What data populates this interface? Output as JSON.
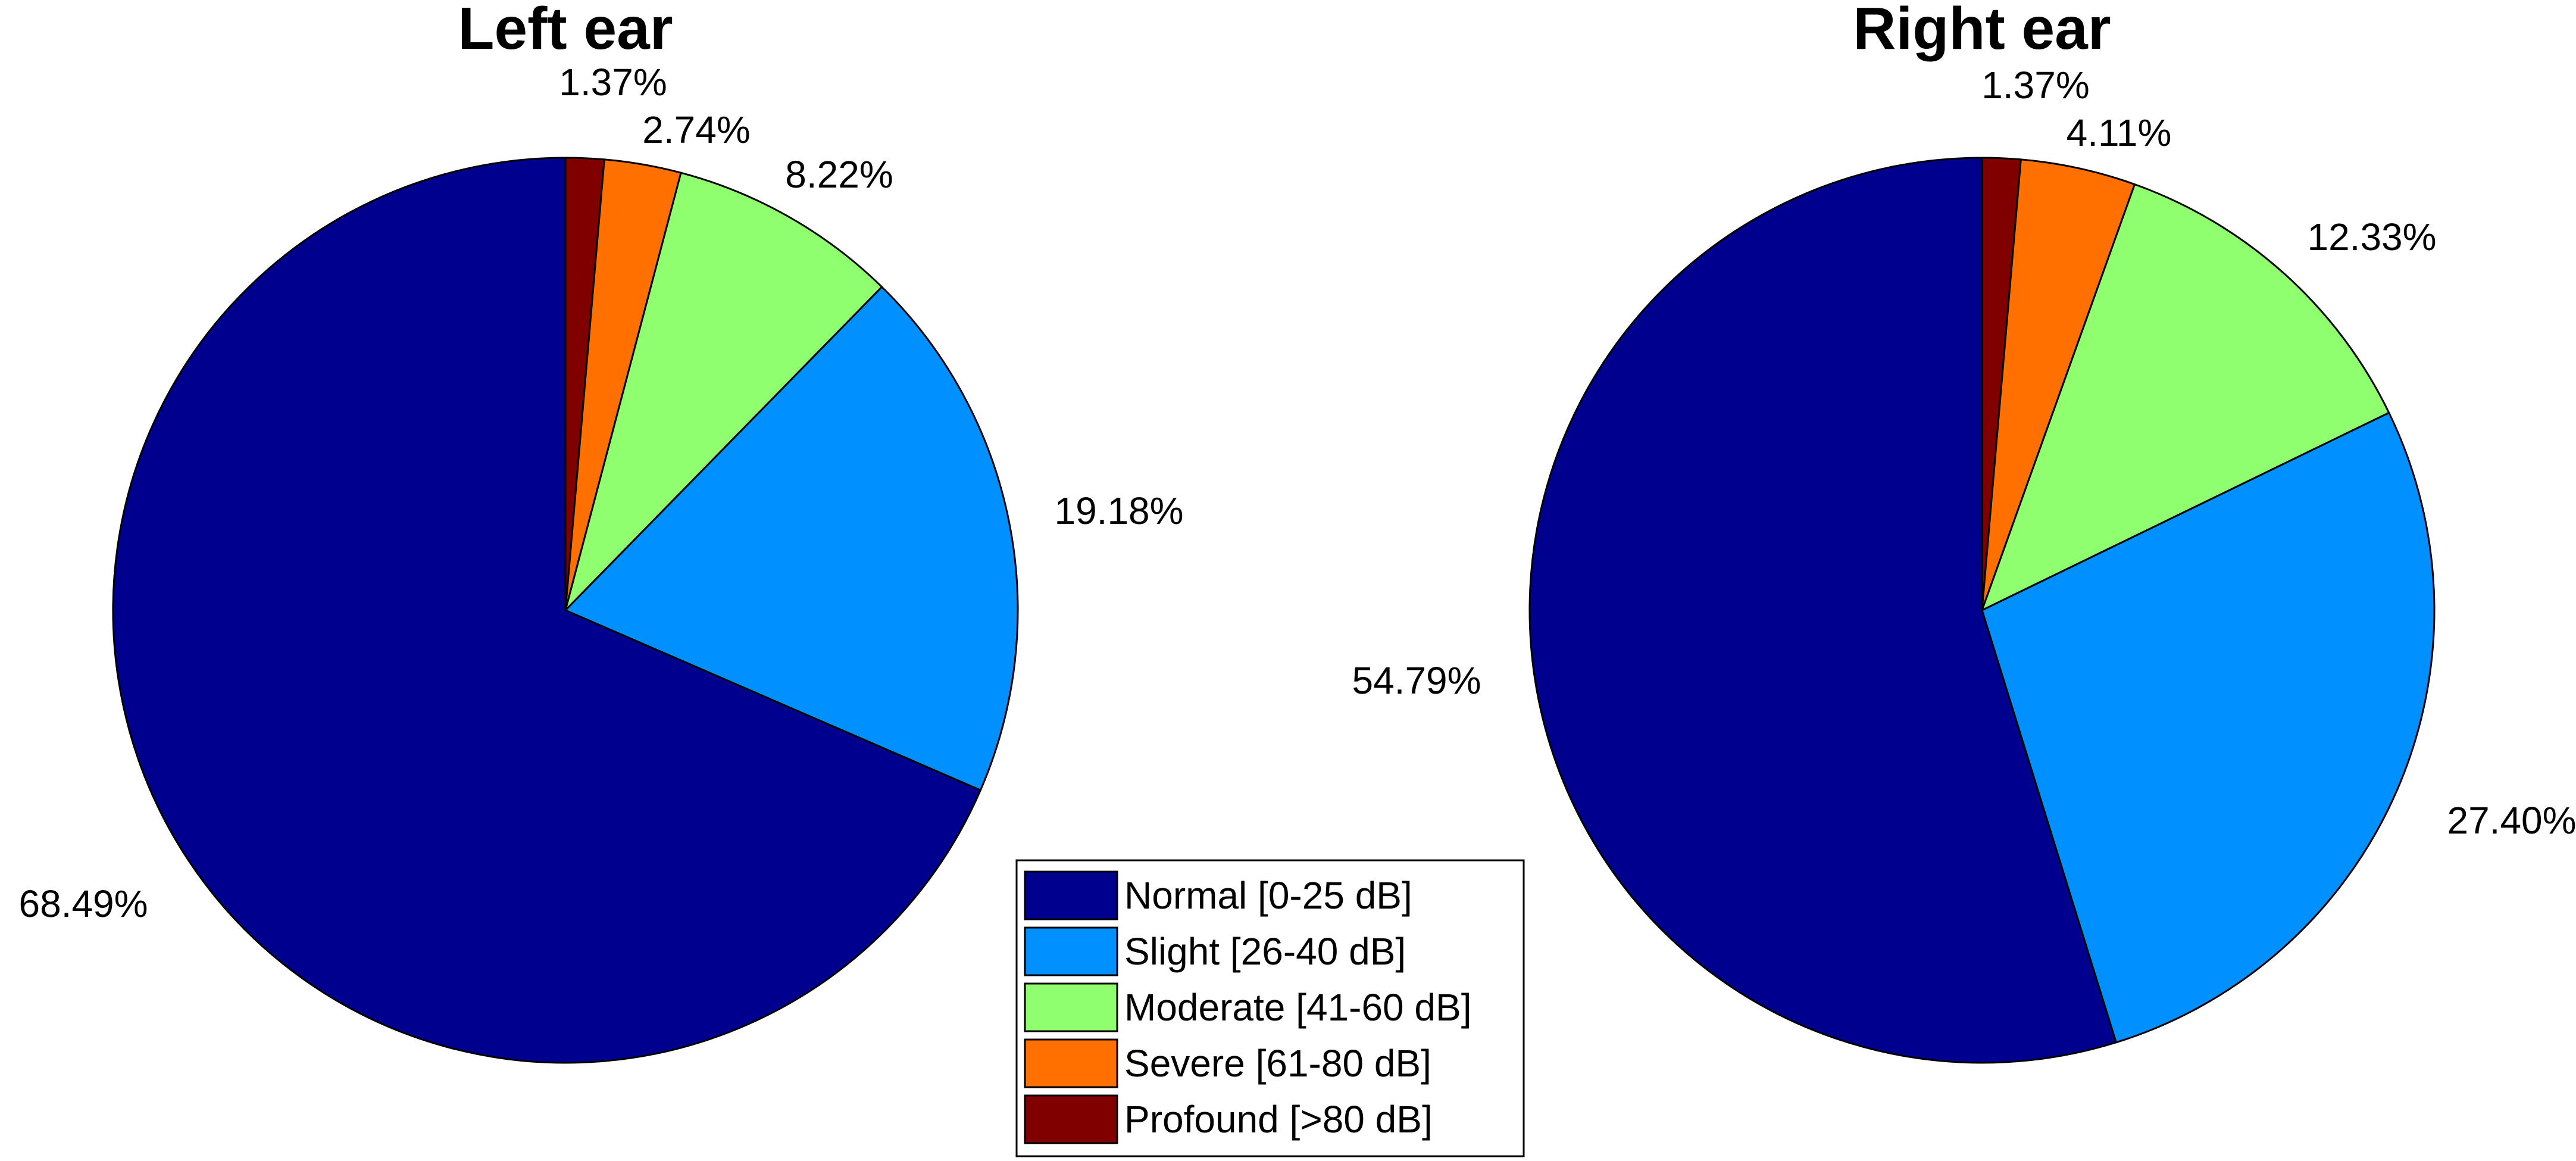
{
  "chart_data": [
    {
      "type": "pie",
      "title": "Left ear",
      "categories": [
        "Normal [0-25 dB]",
        "Slight [26-40 dB]",
        "Moderate [41-60 dB]",
        "Severe [61-80 dB]",
        "Profound [>80 dB]"
      ],
      "values": [
        68.49,
        19.18,
        8.22,
        2.74,
        1.37
      ],
      "labels": [
        "68.49%",
        "19.18%",
        "8.22%",
        "2.74%",
        "1.37%"
      ]
    },
    {
      "type": "pie",
      "title": "Right ear",
      "categories": [
        "Normal [0-25 dB]",
        "Slight [26-40 dB]",
        "Moderate [41-60 dB]",
        "Severe [61-80 dB]",
        "Profound [>80 dB]"
      ],
      "values": [
        54.79,
        27.4,
        12.33,
        4.11,
        1.37
      ],
      "labels": [
        "54.79%",
        "27.40%",
        "12.33%",
        "4.11%",
        "1.37%"
      ]
    }
  ],
  "legend": {
    "placement": "bottom-center",
    "entries": [
      "Normal [0-25 dB]",
      "Slight [26-40 dB]",
      "Moderate [41-60 dB]",
      "Severe [61-80 dB]",
      "Profound [>80 dB]"
    ]
  },
  "colors": [
    "#00008F",
    "#0090FF",
    "#8FFF70",
    "#FF7000",
    "#800000"
  ]
}
